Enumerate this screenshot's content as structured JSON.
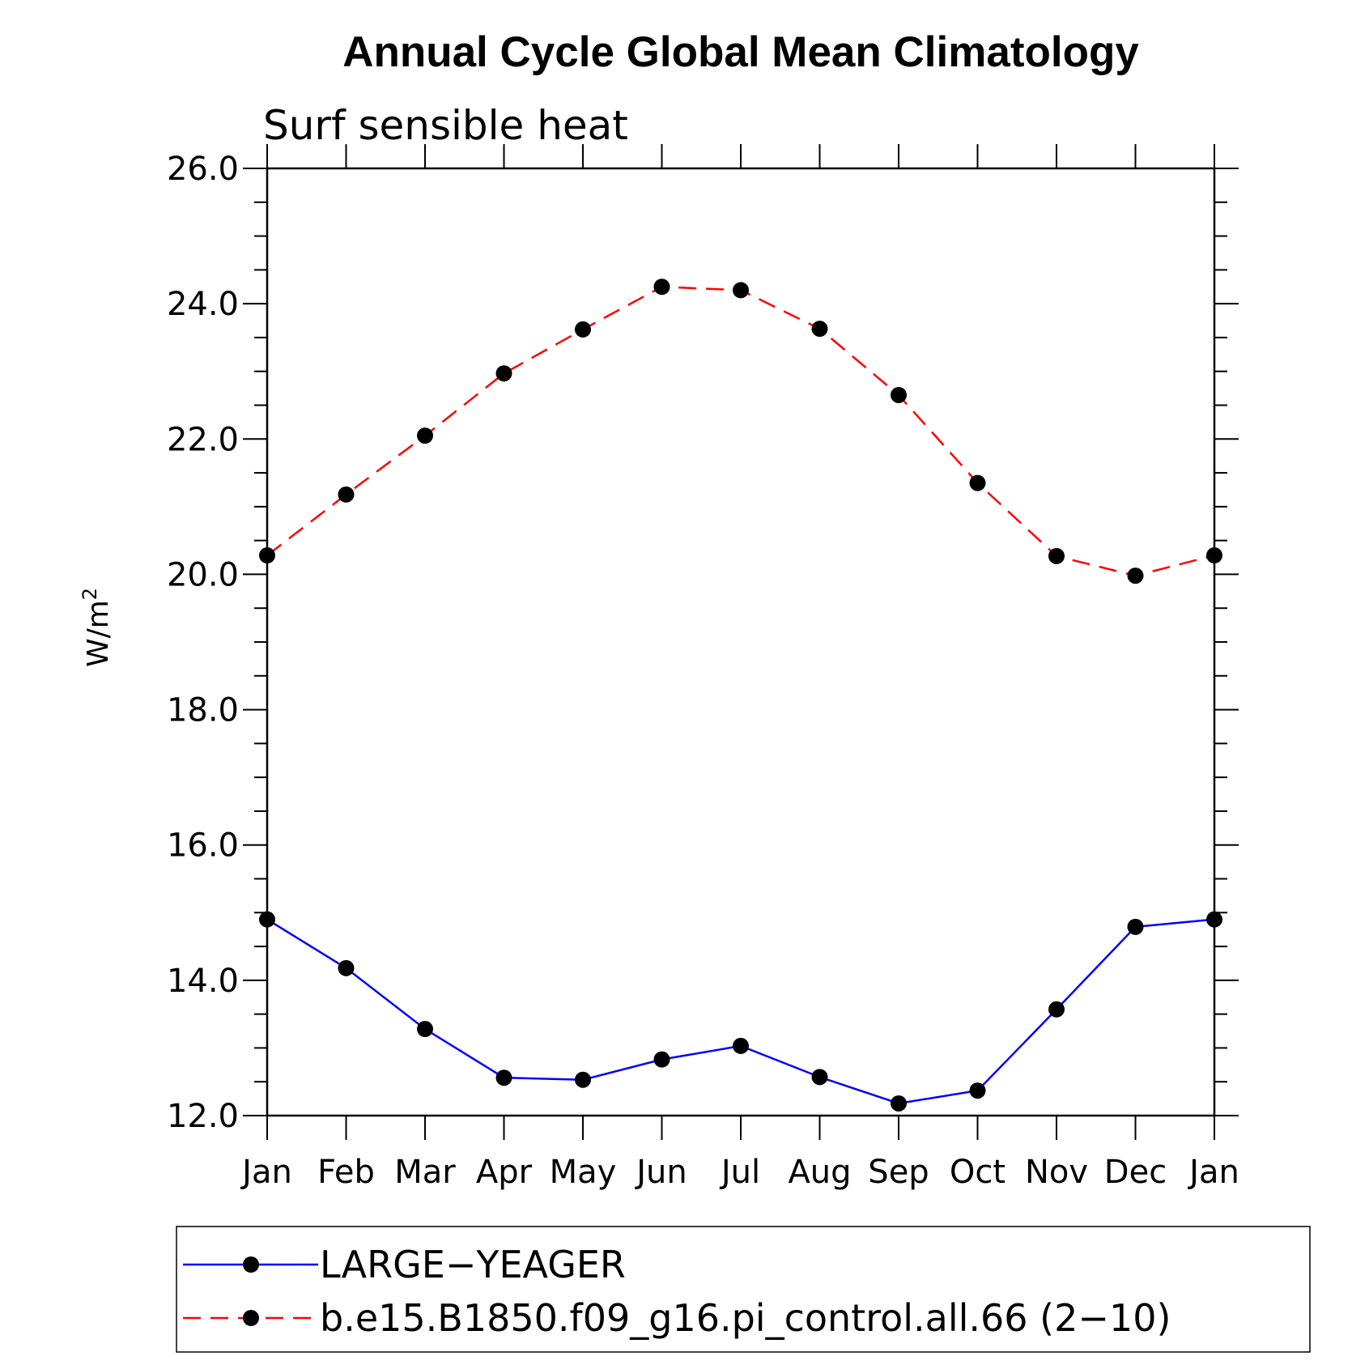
{
  "chart_data": {
    "type": "line",
    "title": "Annual Cycle Global Mean Climatology",
    "subtitle": "Surf sensible heat",
    "xlabel": "",
    "ylabel": "W/m",
    "ylabel_sup": "2",
    "ylim": [
      12.0,
      26.0
    ],
    "yticks": [
      "12.0",
      "14.0",
      "16.0",
      "18.0",
      "20.0",
      "22.0",
      "24.0",
      "26.0"
    ],
    "categories": [
      "Jan",
      "Feb",
      "Mar",
      "Apr",
      "May",
      "Jun",
      "Jul",
      "Aug",
      "Sep",
      "Oct",
      "Nov",
      "Dec",
      "Jan"
    ],
    "series": [
      {
        "name": "LARGE−YEAGER",
        "color": "#0000ff",
        "dash": "solid",
        "values": [
          14.9,
          14.18,
          13.28,
          12.56,
          12.53,
          12.83,
          13.03,
          12.57,
          12.18,
          12.37,
          13.57,
          14.79,
          14.9
        ]
      },
      {
        "name": "b.e15.B1850.f09_g16.pi_control.all.66 (2−10)",
        "color": "#ff0000",
        "dash": "dashed",
        "values": [
          20.28,
          21.18,
          22.05,
          22.97,
          23.62,
          24.25,
          24.2,
          23.63,
          22.65,
          21.35,
          20.27,
          19.98,
          20.28
        ]
      }
    ],
    "marker": "filled-circle",
    "legend_position": "bottom"
  }
}
